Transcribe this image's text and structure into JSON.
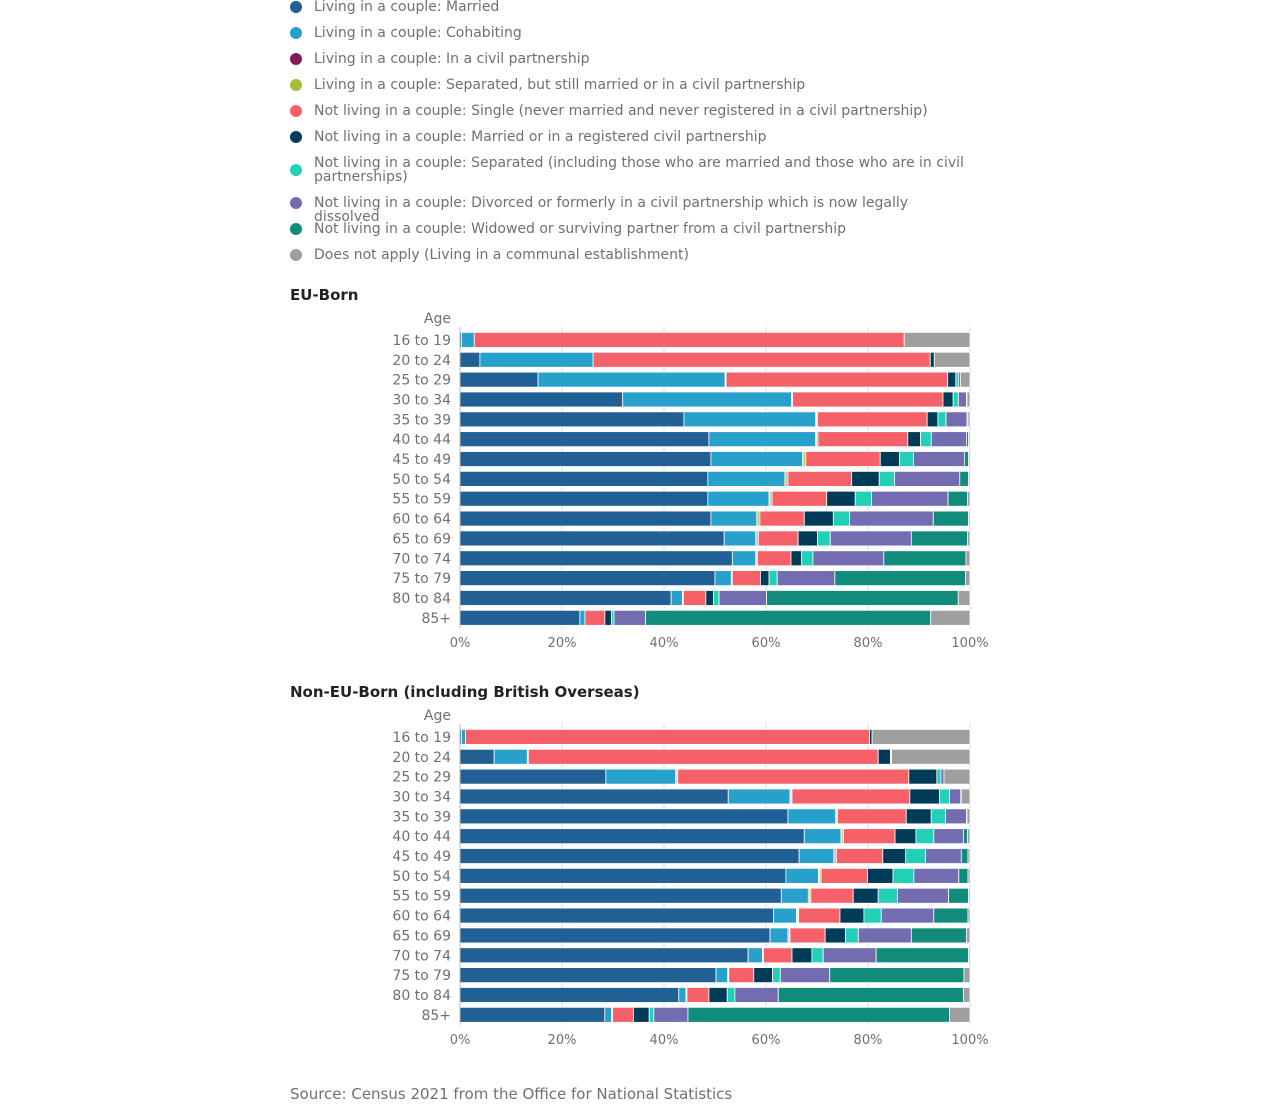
{
  "colors": [
    "#206095",
    "#27a0cc",
    "#871a5b",
    "#a8bd3a",
    "#f66068",
    "#003c57",
    "#22d0b6",
    "#746cb1",
    "#118c7b",
    "#a09fa0"
  ],
  "legend": [
    "Living in a couple: Married",
    "Living in a couple: Cohabiting",
    "Living in a couple: In a civil partnership",
    "Living in a couple: Separated, but still married or in a civil partnership",
    "Not living in a couple: Single (never married and never registered in a civil partnership)",
    "Not living in a couple: Married or in a registered civil partnership",
    "Not living in a couple: Separated (including those who are married and those who are in civil partnerships)",
    "Not living in a couple: Divorced or formerly in a civil partnership which is now legally dissolved",
    "Not living in a couple: Widowed or surviving partner from a civil partnership",
    "Does not apply (Living in a communal establishment)"
  ],
  "source": "Source: Census 2021 from the Office for National Statistics",
  "chart_data": [
    {
      "type": "bar",
      "orientation": "horizontal",
      "stacked": true,
      "title": "EU-Born",
      "category_axis_label": "Age",
      "categories": [
        "16 to 19",
        "20 to 24",
        "25 to 29",
        "30 to 34",
        "35 to 39",
        "40 to 44",
        "45 to 49",
        "50 to 54",
        "55 to 59",
        "60 to 64",
        "65 to 69",
        "70 to 74",
        "75 to 79",
        "80 to 84",
        "85+"
      ],
      "x_ticks": [
        "0%",
        "20%",
        "40%",
        "60%",
        "80%",
        "100%"
      ],
      "xlim": [
        0,
        100
      ],
      "grid": true,
      "series_names_from": "legend",
      "values": [
        [
          0.3,
          2.5,
          0.0,
          0.0,
          84.3,
          0.0,
          0.0,
          0.0,
          0.0,
          12.9
        ],
        [
          3.9,
          22.2,
          0.0,
          0.0,
          66.1,
          0.8,
          0.0,
          0.0,
          0.0,
          7.0
        ],
        [
          15.4,
          36.9,
          0.1,
          0.1,
          43.7,
          1.6,
          0.5,
          0.4,
          0.0,
          1.9
        ],
        [
          31.9,
          33.1,
          0.1,
          0.1,
          29.5,
          2.0,
          1.0,
          1.6,
          0.1,
          0.6
        ],
        [
          43.9,
          25.8,
          0.2,
          0.2,
          21.5,
          2.1,
          1.6,
          4.1,
          0.2,
          0.4
        ],
        [
          48.8,
          20.9,
          0.2,
          0.3,
          17.6,
          2.5,
          2.1,
          6.9,
          0.4,
          0.3
        ],
        [
          49.2,
          18.0,
          0.2,
          0.4,
          14.6,
          3.8,
          2.7,
          10.0,
          0.8,
          0.3
        ],
        [
          48.6,
          15.1,
          0.2,
          0.4,
          12.5,
          5.4,
          3.0,
          12.8,
          1.7,
          0.3
        ],
        [
          48.6,
          12.0,
          0.2,
          0.4,
          10.7,
          5.6,
          3.2,
          15.0,
          3.8,
          0.5
        ],
        [
          49.2,
          9.0,
          0.2,
          0.4,
          8.7,
          5.7,
          3.2,
          16.4,
          6.9,
          0.3
        ],
        [
          51.8,
          6.2,
          0.2,
          0.3,
          7.8,
          3.8,
          2.5,
          15.9,
          11.0,
          0.5
        ],
        [
          53.4,
          4.6,
          0.1,
          0.2,
          6.6,
          2.1,
          2.2,
          13.9,
          16.1,
          0.8
        ],
        [
          50.0,
          3.2,
          0.1,
          0.1,
          5.5,
          1.7,
          1.6,
          11.3,
          25.6,
          0.9
        ],
        [
          41.4,
          2.2,
          0.1,
          0.1,
          4.4,
          1.5,
          1.1,
          9.3,
          37.6,
          2.3
        ],
        [
          23.5,
          1.0,
          0.0,
          0.0,
          3.9,
          1.3,
          0.5,
          6.2,
          55.9,
          7.7
        ]
      ]
    },
    {
      "type": "bar",
      "orientation": "horizontal",
      "stacked": true,
      "title": "Non-EU-Born (including British Overseas)",
      "category_axis_label": "Age",
      "categories": [
        "16 to 19",
        "20 to 24",
        "25 to 29",
        "30 to 34",
        "35 to 39",
        "40 to 44",
        "45 to 49",
        "50 to 54",
        "55 to 59",
        "60 to 64",
        "65 to 69",
        "70 to 74",
        "75 to 79",
        "80 to 84",
        "85+"
      ],
      "x_ticks": [
        "0%",
        "20%",
        "40%",
        "60%",
        "80%",
        "100%"
      ],
      "xlim": [
        0,
        100
      ],
      "grid": true,
      "series_names_from": "legend",
      "values": [
        [
          0.3,
          0.8,
          0.0,
          0.0,
          79.2,
          0.5,
          0.0,
          0.0,
          0.0,
          19.2
        ],
        [
          6.7,
          6.5,
          0.1,
          0.1,
          68.6,
          2.4,
          0.1,
          0.1,
          0.0,
          15.4
        ],
        [
          28.6,
          13.7,
          0.2,
          0.2,
          45.3,
          5.5,
          0.8,
          0.6,
          0.0,
          5.1
        ],
        [
          52.6,
          12.1,
          0.2,
          0.2,
          23.1,
          5.8,
          2.0,
          2.2,
          0.1,
          1.7
        ],
        [
          64.3,
          9.3,
          0.2,
          0.2,
          13.5,
          4.9,
          2.8,
          4.1,
          0.1,
          0.6
        ],
        [
          67.5,
          7.2,
          0.2,
          0.3,
          10.1,
          4.1,
          3.5,
          5.8,
          0.8,
          0.5
        ],
        [
          66.5,
          6.8,
          0.2,
          0.3,
          9.1,
          4.5,
          3.9,
          7.0,
          1.3,
          0.4
        ],
        [
          63.9,
          6.4,
          0.2,
          0.3,
          9.1,
          5.0,
          4.1,
          8.8,
          1.8,
          0.4
        ],
        [
          63.0,
          5.3,
          0.2,
          0.3,
          8.3,
          4.9,
          3.8,
          10.0,
          3.9,
          0.3
        ],
        [
          61.5,
          4.5,
          0.2,
          0.2,
          8.1,
          4.7,
          3.4,
          10.3,
          6.7,
          0.4
        ],
        [
          60.8,
          3.5,
          0.2,
          0.2,
          6.9,
          4.0,
          2.5,
          10.4,
          10.8,
          0.7
        ],
        [
          56.5,
          2.8,
          0.1,
          0.1,
          5.6,
          3.9,
          2.2,
          10.4,
          18.1,
          0.3
        ],
        [
          50.2,
          2.3,
          0.1,
          0.1,
          4.9,
          3.7,
          1.5,
          9.7,
          26.3,
          1.2
        ],
        [
          42.9,
          1.4,
          0.1,
          0.1,
          4.3,
          3.6,
          1.5,
          8.5,
          36.3,
          1.3
        ],
        [
          28.4,
          1.3,
          0.1,
          0.1,
          4.1,
          3.1,
          0.9,
          6.7,
          51.3,
          4.0
        ]
      ]
    }
  ]
}
